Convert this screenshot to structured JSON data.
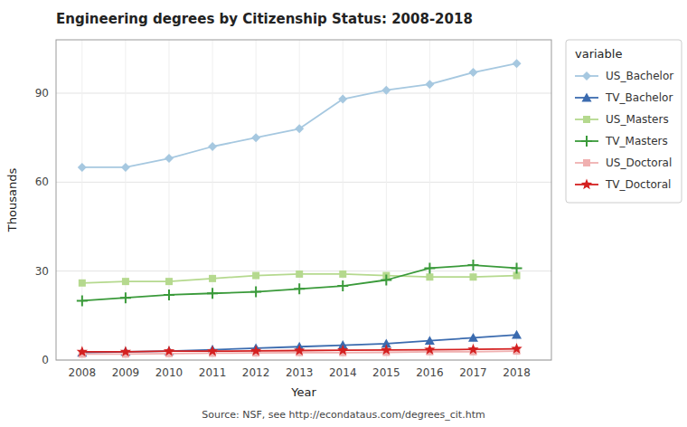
{
  "chart_data": {
    "type": "line",
    "title": "Engineering degrees by Citizenship Status: 2008-2018",
    "x_label": "Year",
    "y_label": "Thousands",
    "annotation": "Source: NSF, see http://econdataus.com/degrees_cit.htm",
    "legend_title": "variable",
    "legend": "right",
    "grid": true,
    "x": [
      2008,
      2009,
      2010,
      2011,
      2012,
      2013,
      2014,
      2015,
      2016,
      2017,
      2018
    ],
    "xlim": [
      2007.4,
      2018.8
    ],
    "xticks": [
      2008,
      2009,
      2010,
      2011,
      2012,
      2013,
      2014,
      2015,
      2016,
      2017,
      2018
    ],
    "ylim": [
      0,
      108
    ],
    "yticks": [
      0,
      30,
      60,
      90
    ],
    "series": [
      {
        "name": "US_Bachelor",
        "color": "#a6c8e0",
        "marker": "diamond",
        "values": [
          65,
          65,
          68,
          72,
          75,
          78,
          88,
          91,
          93,
          97,
          100
        ]
      },
      {
        "name": "TV_Bachelor",
        "color": "#3b6baf",
        "marker": "triangle",
        "values": [
          2.5,
          2.8,
          3.0,
          3.5,
          4.0,
          4.5,
          5.0,
          5.5,
          6.5,
          7.5,
          8.5
        ]
      },
      {
        "name": "US_Masters",
        "color": "#b5d98e",
        "marker": "square",
        "values": [
          26,
          26.5,
          26.5,
          27.5,
          28.5,
          29,
          29,
          28.5,
          28,
          28,
          28.5
        ]
      },
      {
        "name": "TV_Masters",
        "color": "#3a9a3a",
        "marker": "plus",
        "values": [
          20,
          21,
          22,
          22.5,
          23,
          24,
          25,
          27,
          31,
          32,
          31
        ]
      },
      {
        "name": "US_Doctoral",
        "color": "#f0b0b0",
        "marker": "square",
        "values": [
          2.0,
          2.0,
          2.2,
          2.3,
          2.4,
          2.5,
          2.5,
          2.6,
          2.8,
          2.8,
          3.0
        ]
      },
      {
        "name": "TV_Doctoral",
        "color": "#d42020",
        "marker": "star",
        "values": [
          2.8,
          2.8,
          3.0,
          3.0,
          3.1,
          3.2,
          3.3,
          3.4,
          3.5,
          3.6,
          3.8
        ]
      }
    ]
  }
}
